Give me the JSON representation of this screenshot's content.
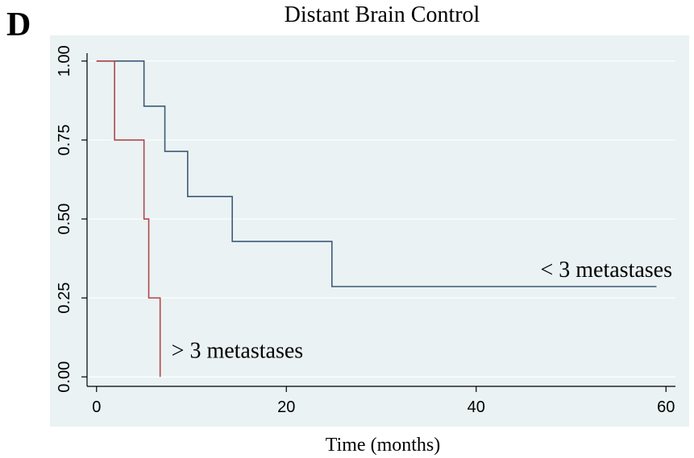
{
  "panel_letter": "D",
  "chart_data": {
    "type": "line",
    "step": true,
    "title": "Distant Brain Control",
    "xlabel": "Time (months)",
    "ylabel": "",
    "xlim": [
      -1,
      61
    ],
    "ylim": [
      -0.03,
      1.02
    ],
    "xticks": [
      0,
      20,
      40,
      60
    ],
    "xtick_labels": [
      "0",
      "20",
      "40",
      "60"
    ],
    "yticks": [
      0,
      0.25,
      0.5,
      0.75,
      1.0
    ],
    "ytick_labels": [
      "0.00",
      "0.25",
      "0.50",
      "0.75",
      "1.00"
    ],
    "grid": true,
    "series": [
      {
        "name": "< 3 metastases",
        "color": "#3e5a78",
        "x": [
          0,
          5,
          7.2,
          9.6,
          14.3,
          24.8,
          59
        ],
        "y": [
          1.0,
          0.857,
          0.714,
          0.571,
          0.429,
          0.286,
          0.286
        ]
      },
      {
        "name": "> 3 metastases",
        "color": "#b2474a",
        "x": [
          0,
          1.9,
          5.0,
          5.5,
          6.7
        ],
        "y": [
          1.0,
          0.75,
          0.5,
          0.25,
          0.0
        ]
      }
    ]
  },
  "colors": {
    "plot_background": "#eaf2f3",
    "grid": "#ffffff",
    "axis": "#000000"
  }
}
